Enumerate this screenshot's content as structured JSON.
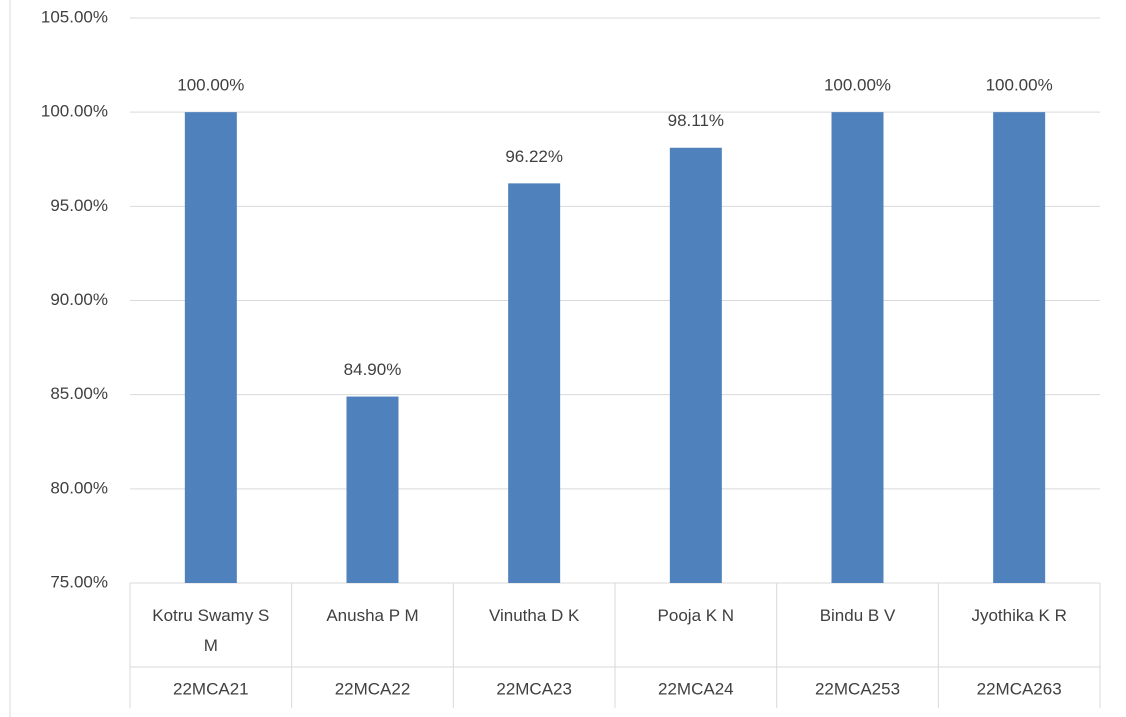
{
  "chart_data": {
    "type": "bar",
    "categories": [
      "Kotru Swamy S M",
      "Anusha P M",
      "Vinutha D K",
      "Pooja K N",
      "Bindu B V",
      "Jyothika K R"
    ],
    "groups": [
      "22MCA21",
      "22MCA22",
      "22MCA23",
      "22MCA24",
      "22MCA253",
      "22MCA263"
    ],
    "values": [
      100,
      84.9,
      96.22,
      98.11,
      100,
      100
    ],
    "value_labels": [
      "100.00%",
      "84.90%",
      "96.22%",
      "98.11%",
      "100.00%",
      "100.00%"
    ],
    "color": "#4f81bd",
    "ylim": [
      75,
      105
    ],
    "yticks": [
      {
        "value": 75,
        "label": "75.00%"
      },
      {
        "value": 80,
        "label": "80.00%"
      },
      {
        "value": 85,
        "label": "85.00%"
      },
      {
        "value": 90,
        "label": "90.00%"
      },
      {
        "value": 95,
        "label": "95.00%"
      },
      {
        "value": 100,
        "label": "100.00%"
      },
      {
        "value": 105,
        "label": "105.00%"
      }
    ],
    "grid": true
  }
}
